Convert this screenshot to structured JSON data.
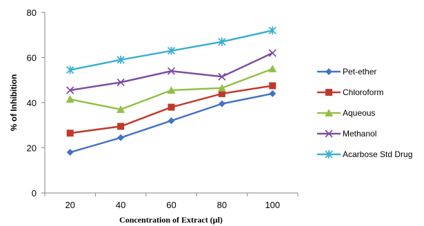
{
  "chart_data": {
    "type": "line",
    "title": "",
    "xlabel": "Concentration of Extract (µl)",
    "ylabel": "% of Inhibition",
    "x": [
      20,
      40,
      60,
      80,
      100
    ],
    "x_tick_labels": [
      "20",
      "40",
      "60",
      "80",
      "100"
    ],
    "y_tick_labels": [
      "0",
      "20",
      "40",
      "60",
      "80"
    ],
    "ylim": [
      0,
      80
    ],
    "grid": false,
    "legend_position": "right",
    "series": [
      {
        "name": "Pet-ether",
        "values": [
          18,
          24.5,
          32,
          39.5,
          44
        ],
        "color": "#4472C4",
        "marker": "diamond"
      },
      {
        "name": "Chloroform",
        "values": [
          26.5,
          29.5,
          38,
          44,
          47.5
        ],
        "color": "#C0392B",
        "marker": "square"
      },
      {
        "name": "Aqueous",
        "values": [
          41.5,
          37,
          45.5,
          46.5,
          55
        ],
        "color": "#92C047",
        "marker": "triangle"
      },
      {
        "name": "Methanol",
        "values": [
          45.5,
          49,
          54,
          51.5,
          62
        ],
        "color": "#7B4EA3",
        "marker": "x"
      },
      {
        "name": "Acarbose Std Drug",
        "values": [
          54.5,
          59,
          63,
          67,
          72
        ],
        "color": "#3AAFD0",
        "marker": "star"
      }
    ]
  }
}
